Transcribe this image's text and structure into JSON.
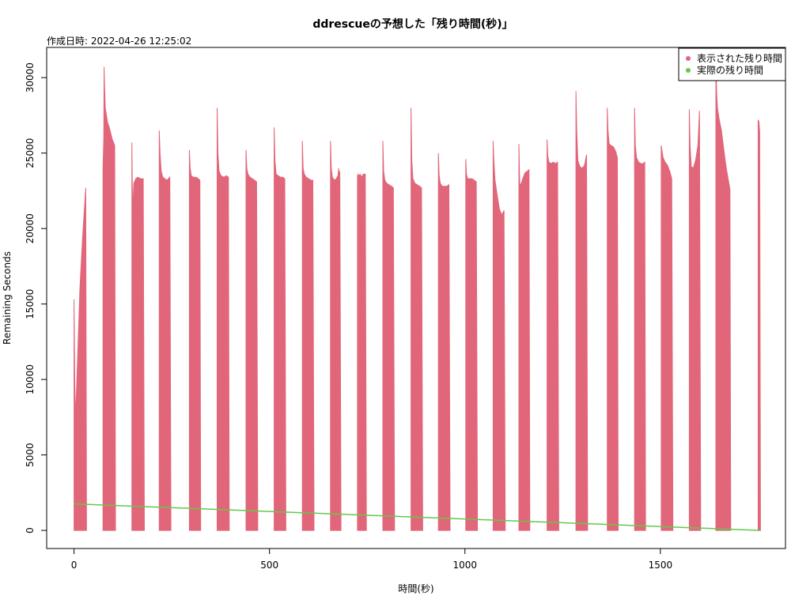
{
  "chart_data": {
    "type": "area",
    "title": "ddrescueの予想した「残り時間(秒)」",
    "subtitle": "作成日時: 2022-04-26 12:25:02",
    "xlabel": "時間(秒)",
    "ylabel": "Remaining Seconds",
    "xlim": [
      -70,
      1820
    ],
    "ylim": [
      -1200,
      32000
    ],
    "x_ticks": [
      0,
      500,
      1000,
      1500
    ],
    "y_ticks": [
      0,
      5000,
      10000,
      15000,
      20000,
      25000,
      30000
    ],
    "grid": false,
    "legend_position": "top-right",
    "colors": {
      "displayed": "#e2667a",
      "actual": "#62c94a"
    },
    "series": [
      {
        "name": "表示された残り時間",
        "kind": "bursts",
        "bursts": [
          {
            "x": [
              0,
              2,
              4,
              8,
              15,
              22,
              30,
              32
            ],
            "y": [
              15300,
              9500,
              7500,
              10500,
              16000,
              19500,
              22700,
              0
            ]
          },
          {
            "x": [
              74,
              76,
              77,
              78,
              80,
              83,
              86,
              89,
              92,
              95,
              98,
              101,
              104,
              106
            ],
            "y": [
              24000,
              26000,
              30700,
              29500,
              28000,
              27500,
              27000,
              26800,
              26500,
              26200,
              25900,
              25700,
              25500,
              0
            ]
          },
          {
            "x": [
              148,
              150,
              153,
              158,
              163,
              170,
              177,
              180
            ],
            "y": [
              25700,
              21000,
              23000,
              23300,
              23400,
              23300,
              23300,
              0
            ]
          },
          {
            "x": [
              218,
              220,
              223,
              227,
              232,
              238,
              245,
              248
            ],
            "y": [
              26500,
              25000,
              23800,
              23400,
              23300,
              23200,
              23400,
              0
            ]
          },
          {
            "x": [
              295,
              297,
              300,
              305,
              312,
              318,
              322,
              324
            ],
            "y": [
              25200,
              24000,
              23500,
              23400,
              23400,
              23300,
              23200,
              0
            ]
          },
          {
            "x": [
              366,
              368,
              371,
              376,
              383,
              390,
              395,
              397
            ],
            "y": [
              28000,
              25000,
              23800,
              23500,
              23400,
              23500,
              23400,
              0
            ]
          },
          {
            "x": [
              440,
              442,
              445,
              450,
              456,
              462,
              467,
              470
            ],
            "y": [
              25200,
              24000,
              23600,
              23400,
              23300,
              23200,
              23100,
              0
            ]
          },
          {
            "x": [
              512,
              514,
              517,
              522,
              528,
              534,
              539,
              542
            ],
            "y": [
              26700,
              24500,
              23600,
              23500,
              23400,
              23400,
              23300,
              0
            ]
          },
          {
            "x": [
              584,
              586,
              589,
              594,
              600,
              606,
              611,
              614
            ],
            "y": [
              25800,
              24000,
              23600,
              23400,
              23300,
              23200,
              23200,
              0
            ]
          },
          {
            "x": [
              656,
              658,
              661,
              666,
              671,
              675,
              677,
              678,
              680,
              683
            ],
            "y": [
              25800,
              24000,
              23400,
              23200,
              23300,
              23500,
              24000,
              23500,
              23800,
              0
            ]
          },
          {
            "x": [
              725,
              726,
              728,
              732,
              736,
              740,
              745,
              748
            ],
            "y": [
              23400,
              23600,
              23500,
              23600,
              23400,
              23600,
              23600,
              0
            ]
          },
          {
            "x": [
              790,
              792,
              795,
              800,
              806,
              812,
              817,
              820
            ],
            "y": [
              25800,
              23800,
              23200,
              23000,
              22900,
              22800,
              22700,
              0
            ]
          },
          {
            "x": [
              862,
              864,
              867,
              872,
              878,
              884,
              889,
              892
            ],
            "y": [
              28000,
              24500,
              23300,
              23000,
              22900,
              22800,
              22700,
              0
            ]
          },
          {
            "x": [
              932,
              934,
              937,
              942,
              948,
              954,
              959,
              962
            ],
            "y": [
              25000,
              23500,
              23000,
              22800,
              22800,
              22800,
              22900,
              0
            ]
          },
          {
            "x": [
              1002,
              1004,
              1007,
              1012,
              1018,
              1024,
              1029,
              1032
            ],
            "y": [
              24600,
              23600,
              23300,
              23300,
              23300,
              23200,
              23100,
              0
            ]
          },
          {
            "x": [
              1072,
              1074,
              1077,
              1082,
              1088,
              1094,
              1100,
              1103
            ],
            "y": [
              25800,
              24500,
              23200,
              22300,
              21300,
              20900,
              21200,
              0
            ]
          },
          {
            "x": [
              1138,
              1140,
              1143,
              1148,
              1154,
              1160,
              1164,
              1166
            ],
            "y": [
              25600,
              23000,
              22900,
              23300,
              23700,
              23800,
              23900,
              0
            ]
          },
          {
            "x": [
              1210,
              1212,
              1215,
              1220,
              1226,
              1232,
              1237,
              1240
            ],
            "y": [
              25900,
              24800,
              24400,
              24300,
              24400,
              24300,
              24400,
              0
            ]
          },
          {
            "x": [
              1284,
              1286,
              1289,
              1294,
              1300,
              1306,
              1311,
              1314
            ],
            "y": [
              29100,
              26500,
              24500,
              24100,
              24000,
              24200,
              24900,
              0
            ]
          },
          {
            "x": [
              1364,
              1366,
              1369,
              1374,
              1380,
              1386,
              1390,
              1392
            ],
            "y": [
              28000,
              26500,
              25600,
              25500,
              25400,
              25100,
              24700,
              0
            ]
          },
          {
            "x": [
              1434,
              1436,
              1439,
              1444,
              1450,
              1456,
              1460,
              1462
            ],
            "y": [
              28000,
              25500,
              24700,
              24400,
              24300,
              24300,
              24400,
              0
            ]
          },
          {
            "x": [
              1502,
              1504,
              1507,
              1512,
              1518,
              1524,
              1529,
              1532
            ],
            "y": [
              25500,
              25200,
              24700,
              24400,
              24200,
              23800,
              23300,
              0
            ]
          },
          {
            "x": [
              1574,
              1576,
              1579,
              1584,
              1590,
              1596,
              1600,
              1603
            ],
            "y": [
              27900,
              25500,
              24100,
              24000,
              24500,
              25500,
              27800,
              0
            ]
          },
          {
            "x": [
              1642,
              1644,
              1646,
              1650,
              1656,
              1662,
              1668,
              1674,
              1678,
              1680
            ],
            "y": [
              31500,
              29000,
              28000,
              27300,
              26500,
              25300,
              24100,
              23200,
              22600,
              0
            ]
          },
          {
            "x": [
              1750,
              1752,
              1754,
              1756
            ],
            "y": [
              27200,
              27100,
              26400,
              0
            ]
          }
        ]
      },
      {
        "name": "実際の残り時間",
        "kind": "line",
        "x": [
          0,
          1756
        ],
        "y": [
          1756,
          0
        ]
      }
    ]
  }
}
